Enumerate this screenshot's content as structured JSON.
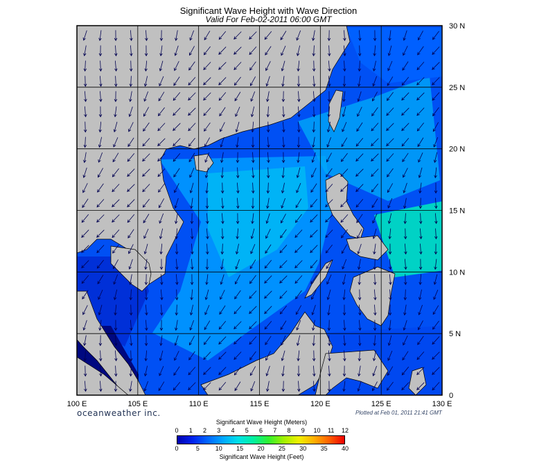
{
  "title": "Significant Wave Height with Wave Direction",
  "subtitle": "Valid For Feb-02-2011 06:00 GMT",
  "logo": "oceanweather inc.",
  "plotted": "Plotted at Feb 01, 2011 21:41 GMT",
  "lon_labels": [
    "100 E",
    "105 E",
    "110 E",
    "115 E",
    "120 E",
    "125 E",
    "130 E"
  ],
  "lat_labels": [
    "30 N",
    "25 N",
    "20 N",
    "15 N",
    "10 N",
    "5 N",
    "0"
  ],
  "extent": {
    "lon": [
      100,
      130
    ],
    "lat": [
      0,
      30
    ]
  },
  "colorbar": {
    "title_top": "Significant Wave Height (Meters)",
    "title_bottom": "Significant Wave Height (Feet)",
    "meters": [
      "0",
      "1",
      "2",
      "3",
      "4",
      "5",
      "6",
      "7",
      "8",
      "9",
      "10",
      "11",
      "12"
    ],
    "feet": [
      "0",
      "5",
      "10",
      "15",
      "20",
      "25",
      "30",
      "35",
      "40"
    ],
    "colors": [
      "#0000b0",
      "#0022ee",
      "#0066ff",
      "#00a8ff",
      "#00e0e8",
      "#00f0a0",
      "#30f030",
      "#a0f000",
      "#f0f000",
      "#ffb000",
      "#ff6000",
      "#f00000"
    ]
  },
  "colors": {
    "land": "#c0c0c0",
    "sea_deep": "#0044f0",
    "sea_mid": "#0090ff",
    "sea_high": "#00c8f0",
    "arrow": "#000050"
  }
}
